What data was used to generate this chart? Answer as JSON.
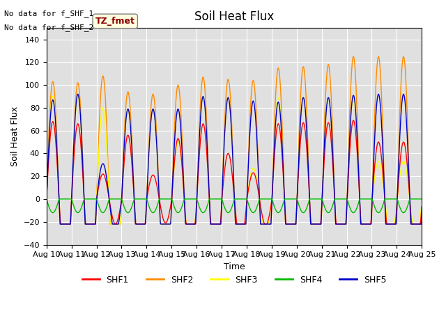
{
  "title": "Soil Heat Flux",
  "ylabel": "Soil Heat Flux",
  "xlabel": "Time",
  "text_no_data": [
    "No data for f_SHF_1",
    "No data for f_SHF_2"
  ],
  "annotation_box": "TZ_fmet",
  "ylim": [
    -40,
    150
  ],
  "yticks": [
    -40,
    -20,
    0,
    20,
    40,
    60,
    80,
    100,
    120,
    140
  ],
  "xtick_labels": [
    "Aug 10",
    "Aug 11",
    "Aug 12",
    "Aug 13",
    "Aug 14",
    "Aug 15",
    "Aug 16",
    "Aug 17",
    "Aug 18",
    "Aug 19",
    "Aug 20",
    "Aug 21",
    "Aug 22",
    "Aug 23",
    "Aug 24",
    "Aug 25"
  ],
  "colors": {
    "SHF1": "#ff0000",
    "SHF2": "#ff8c00",
    "SHF3": "#ffff00",
    "SHF4": "#00bb00",
    "SHF5": "#0000cc"
  },
  "bg_color": "#e0e0e0",
  "n_days": 15,
  "points_per_day": 48,
  "amplitude_shf2": [
    103,
    102,
    108,
    94,
    92,
    100,
    107,
    105,
    104,
    115,
    116,
    118,
    125,
    125,
    125
  ],
  "amplitude_shf1": [
    68,
    66,
    22,
    56,
    21,
    53,
    66,
    40,
    23,
    66,
    67,
    67,
    69,
    50,
    50
  ],
  "amplitude_shf3": [
    90,
    90,
    80,
    79,
    79,
    50,
    90,
    89,
    27,
    89,
    89,
    89,
    89,
    33,
    33
  ],
  "amplitude_shf5": [
    87,
    92,
    31,
    79,
    79,
    79,
    90,
    89,
    86,
    85,
    89,
    89,
    91,
    92,
    92
  ],
  "min_val": -22,
  "legend_entries": [
    "SHF1",
    "SHF2",
    "SHF3",
    "SHF4",
    "SHF5"
  ]
}
